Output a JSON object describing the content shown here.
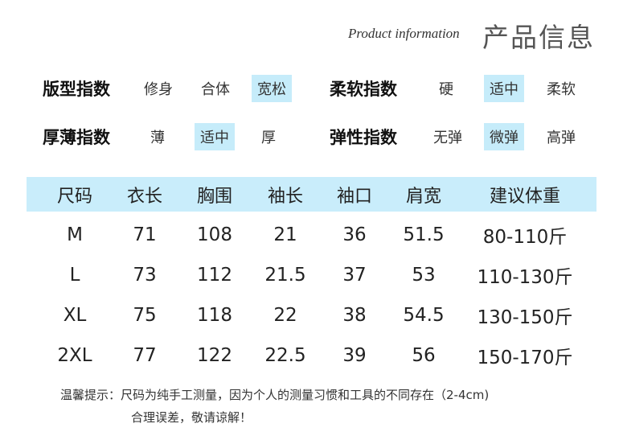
{
  "header": {
    "subtitle_en": "Product information",
    "title_cn": "产品信息"
  },
  "indices": [
    {
      "label": "版型指数",
      "options": [
        "修身",
        "合体",
        "宽松"
      ],
      "selected": "宽松"
    },
    {
      "label": "柔软指数",
      "options": [
        "硬",
        "适中",
        "柔软"
      ],
      "selected": "适中"
    },
    {
      "label": "厚薄指数",
      "options": [
        "薄",
        "适中",
        "厚"
      ],
      "selected": "适中"
    },
    {
      "label": "弹性指数",
      "options": [
        "无弹",
        "微弹",
        "高弹"
      ],
      "selected": "微弹"
    }
  ],
  "highlight_color": "#c6ecfa",
  "size_table": {
    "columns": [
      "尺码",
      "衣长",
      "胸围",
      "袖长",
      "袖口",
      "肩宽",
      "建议体重"
    ],
    "rows": [
      [
        "M",
        "71",
        "108",
        "21",
        "36",
        "51.5",
        "80-110斤"
      ],
      [
        "L",
        "73",
        "112",
        "21.5",
        "37",
        "53",
        "110-130斤"
      ],
      [
        "XL",
        "75",
        "118",
        "22",
        "38",
        "54.5",
        "130-150斤"
      ],
      [
        "2XL",
        "77",
        "122",
        "22.5",
        "39",
        "56",
        "150-170斤"
      ]
    ]
  },
  "note": {
    "line1": "温馨提示：尺码为纯手工测量，因为个人的测量习惯和工具的不同存在（2-4cm)",
    "line2": "合理误差，敬请谅解！"
  }
}
